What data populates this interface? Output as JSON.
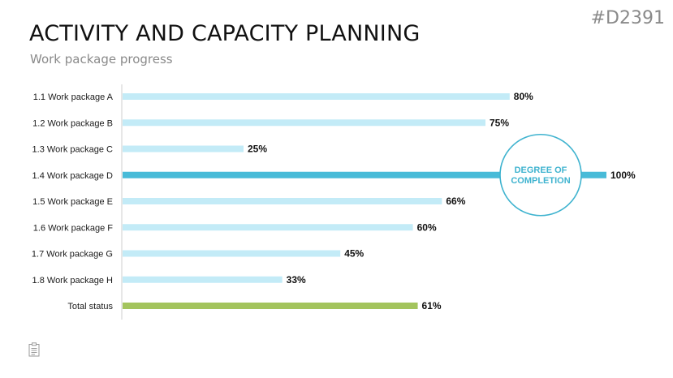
{
  "header": {
    "slide_id": "#D2391",
    "title": "ACTIVITY AND CAPACITY PLANNING",
    "subtitle": "Work package progress"
  },
  "badge": {
    "lines": [
      "DEGREE OF",
      "COMPLETION"
    ],
    "color": "#3fb3cf"
  },
  "colors": {
    "bar_default": "#c3ebf7",
    "bar_highlight": "#48bbd8",
    "bar_total": "#a3c45d",
    "axis": "#cfcfcf"
  },
  "icons": {
    "footer": "clipboard-icon"
  },
  "chart_data": {
    "type": "bar",
    "orientation": "horizontal",
    "categories": [
      "1.1 Work package A",
      "1.2 Work package B",
      "1.3 Work package C",
      "1.4 Work package D",
      "1.5 Work package E",
      "1.6 Work package F",
      "1.7 Work package G",
      "1.8 Work package H",
      "Total status"
    ],
    "values": [
      80,
      75,
      25,
      100,
      66,
      60,
      45,
      33,
      61
    ],
    "value_labels": [
      "80%",
      "75%",
      "25%",
      "100%",
      "66%",
      "60%",
      "45%",
      "33%",
      "61%"
    ],
    "highlight_index": 3,
    "total_index": 8,
    "xlim": [
      0,
      100
    ],
    "grid": false
  }
}
